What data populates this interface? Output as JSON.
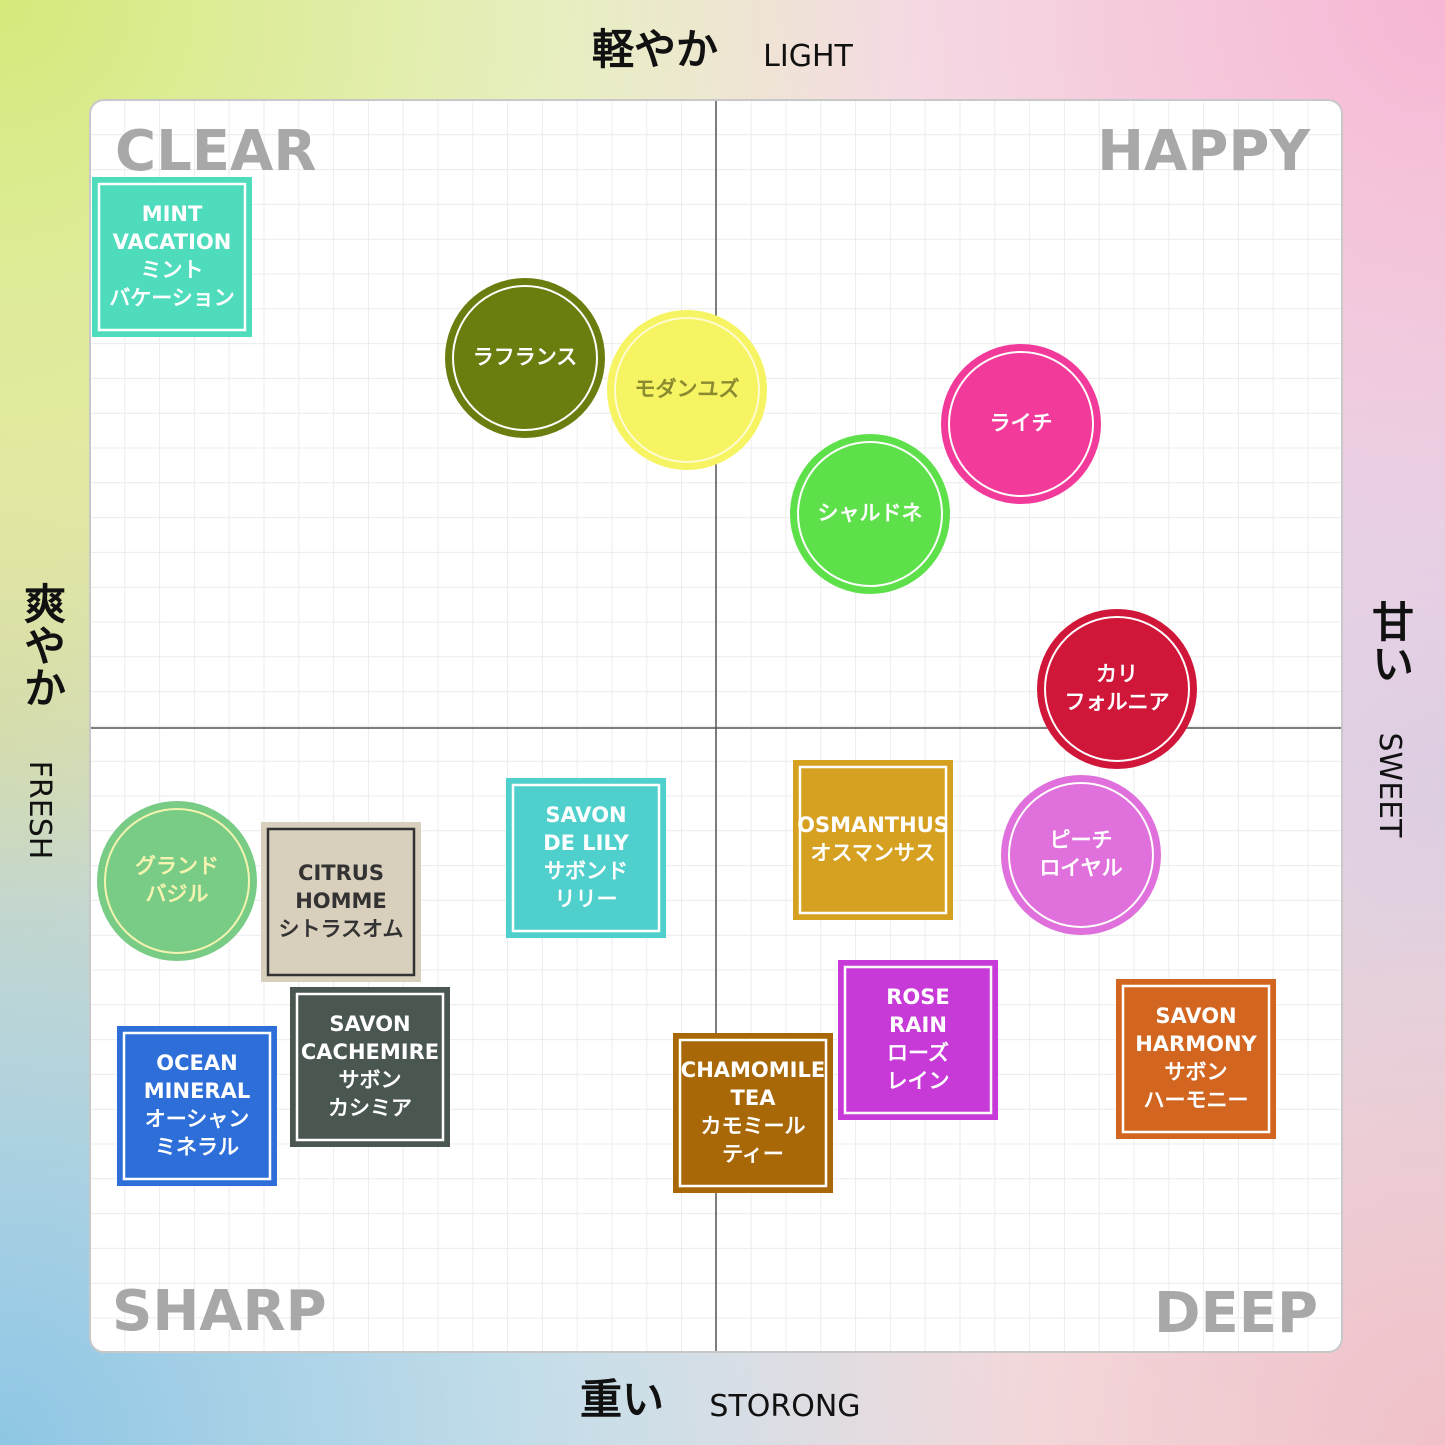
{
  "axes": {
    "top": {
      "ja": "軽やか",
      "en": "LIGHT"
    },
    "bottom": {
      "ja": "重い",
      "en": "STORONG"
    },
    "left": {
      "ja": "爽やか",
      "en": "FRESH"
    },
    "right": {
      "ja": "甘い",
      "en": "SWEET"
    }
  },
  "quadrants": [
    "CLEAR",
    "HAPPY",
    "SHARP",
    "DEEP"
  ],
  "items": [
    {
      "shape": "square",
      "color": "#4fdcbc",
      "lines": [
        "MINT",
        "VACATION",
        "ミント",
        "バケーション"
      ]
    },
    {
      "shape": "circle",
      "color": "#6a7d0f",
      "lines": [
        "ラフランス"
      ]
    },
    {
      "shape": "circle",
      "color": "#f6f462",
      "lines": [
        "モダンユズ"
      ]
    },
    {
      "shape": "circle",
      "color": "#f23a9a",
      "lines": [
        "ライチ"
      ]
    },
    {
      "shape": "circle",
      "color": "#5ee04a",
      "lines": [
        "シャルドネ"
      ]
    },
    {
      "shape": "circle",
      "color": "#d0173a",
      "lines": [
        "カリ",
        "フォルニア"
      ]
    },
    {
      "shape": "square",
      "color": "#4fd0cc",
      "lines": [
        "SAVON",
        "DE LILY",
        "サボンド",
        "リリー"
      ]
    },
    {
      "shape": "square",
      "color": "#d6a020",
      "lines": [
        "OSMANTHUS",
        "オスマンサス"
      ]
    },
    {
      "shape": "circle",
      "color": "#e070dc",
      "lines": [
        "ピーチ",
        "ロイヤル"
      ]
    },
    {
      "shape": "circle",
      "color": "#79cc86",
      "lines": [
        "グランド",
        "バジル"
      ]
    },
    {
      "shape": "square",
      "color": "#d8d0bc",
      "lines": [
        "CITRUS",
        "HOMME",
        "シトラスオム"
      ]
    },
    {
      "shape": "square",
      "color": "#4a5650",
      "lines": [
        "SAVON",
        "CACHEMIRE",
        "サボン",
        "カシミア"
      ]
    },
    {
      "shape": "square",
      "color": "#2e6ed8",
      "lines": [
        "OCEAN",
        "MINERAL",
        "オーシャン",
        "ミネラル"
      ]
    },
    {
      "shape": "square",
      "color": "#c83ad8",
      "lines": [
        "ROSE",
        "RAIN",
        "ローズ",
        "レイン"
      ]
    },
    {
      "shape": "square",
      "color": "#a86808",
      "lines": [
        "CHAMOMILE",
        "TEA",
        "カモミール",
        "ティー"
      ]
    },
    {
      "shape": "square",
      "color": "#d26620",
      "lines": [
        "SAVON",
        "HARMONY",
        "サボン",
        "ハーモニー"
      ]
    }
  ]
}
